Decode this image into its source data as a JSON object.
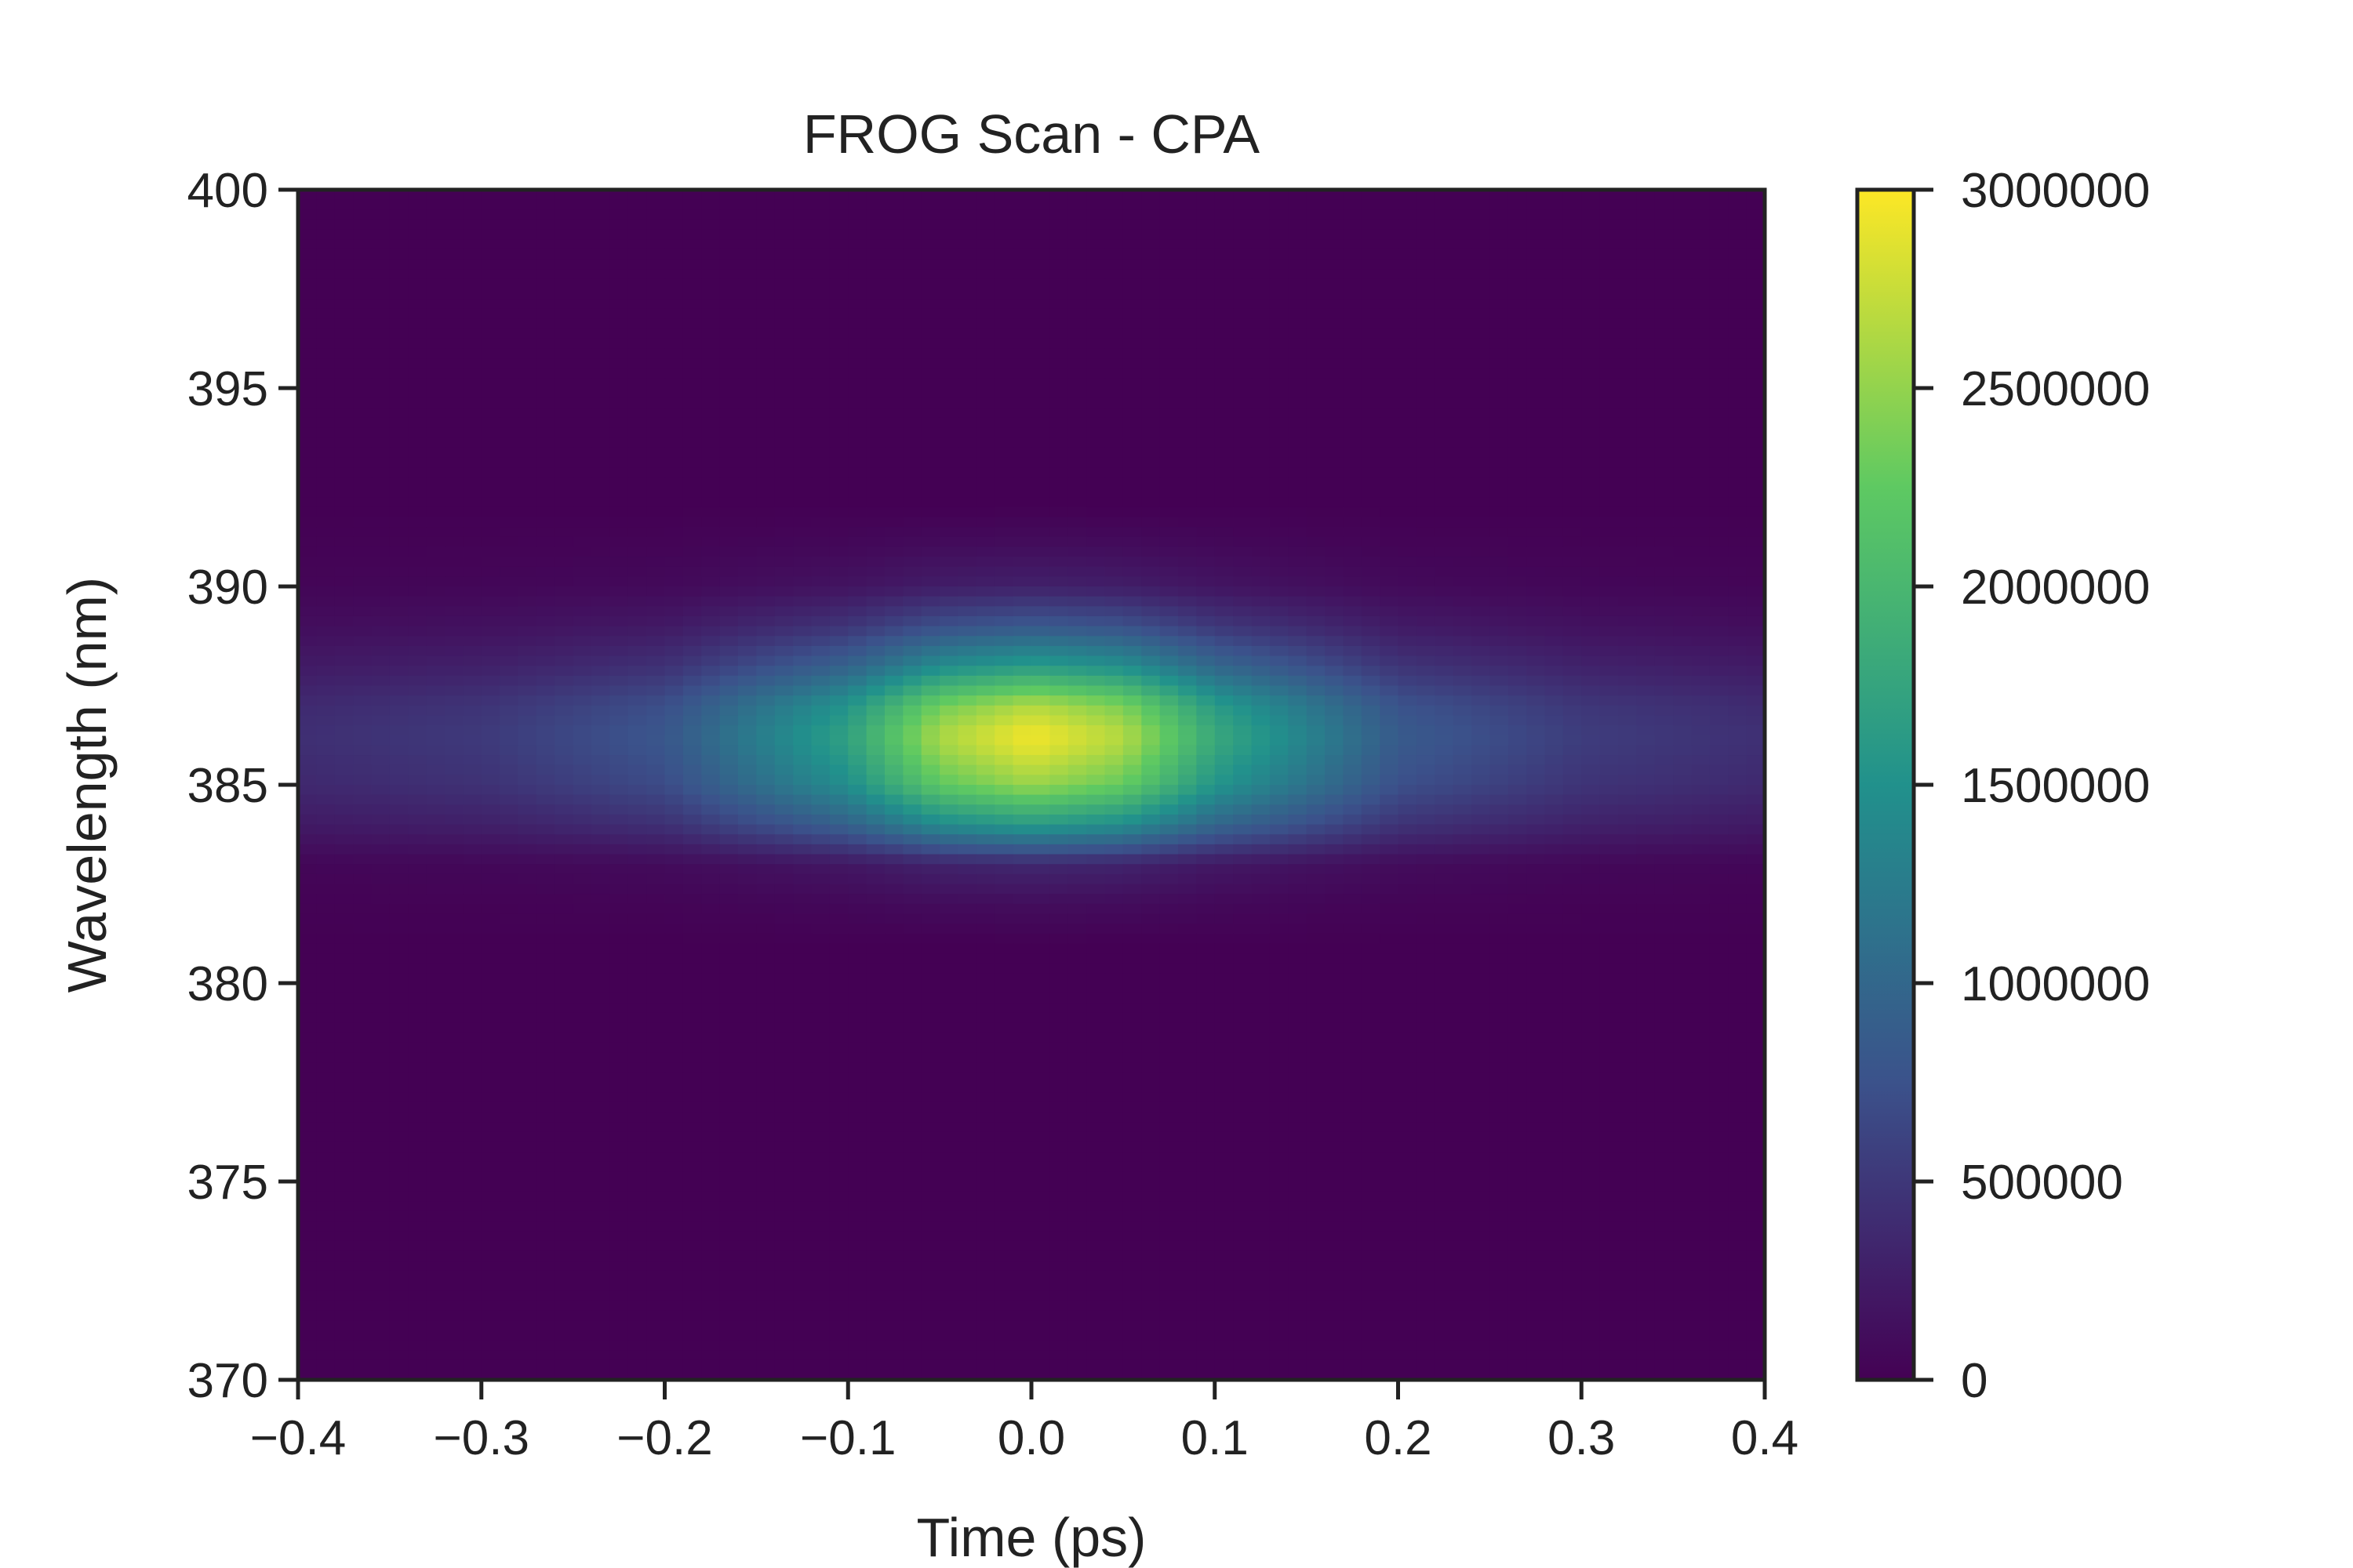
{
  "chart_data": {
    "type": "heatmap",
    "title": "FROG Scan - CPA",
    "xlabel": "Time (ps)",
    "ylabel": "Wavelength (nm)",
    "xlim": [
      -0.4,
      0.4
    ],
    "ylim": [
      370,
      400
    ],
    "x_ticks": [
      "−0.4",
      "−0.3",
      "−0.2",
      "−0.1",
      "0.0",
      "0.1",
      "0.2",
      "0.3",
      "0.4"
    ],
    "y_ticks": [
      "370",
      "375",
      "380",
      "385",
      "390",
      "395",
      "400"
    ],
    "colormap": "viridis",
    "colorbar": {
      "range": [
        0,
        3000000
      ],
      "ticks": [
        "0",
        "500000",
        "1000000",
        "1500000",
        "2000000",
        "2500000",
        "3000000"
      ]
    },
    "peak": {
      "time_ps": 0.0,
      "wavelength_nm": 386.3,
      "value": 2950000
    },
    "spectral_profile": {
      "wavelength_nm": [
        382,
        383,
        384,
        385,
        386,
        386.3,
        387,
        388,
        389,
        390,
        391
      ],
      "relative_intensity": [
        0.04,
        0.12,
        0.55,
        0.86,
        0.99,
        1.0,
        0.9,
        0.55,
        0.28,
        0.1,
        0.04
      ]
    },
    "temporal_profile_at_peak": {
      "time_ps": [
        -0.4,
        -0.3,
        -0.2,
        -0.1,
        -0.05,
        0.0,
        0.05,
        0.1,
        0.2,
        0.3,
        0.4
      ],
      "value": [
        420000,
        520000,
        800000,
        1700000,
        2600000,
        2950000,
        2650000,
        1800000,
        850000,
        550000,
        430000
      ]
    },
    "grid": false,
    "colors": {
      "axis": "#222222",
      "colormap_stops": [
        "#440154",
        "#3b528b",
        "#21918c",
        "#5ec962",
        "#fde725"
      ]
    }
  }
}
